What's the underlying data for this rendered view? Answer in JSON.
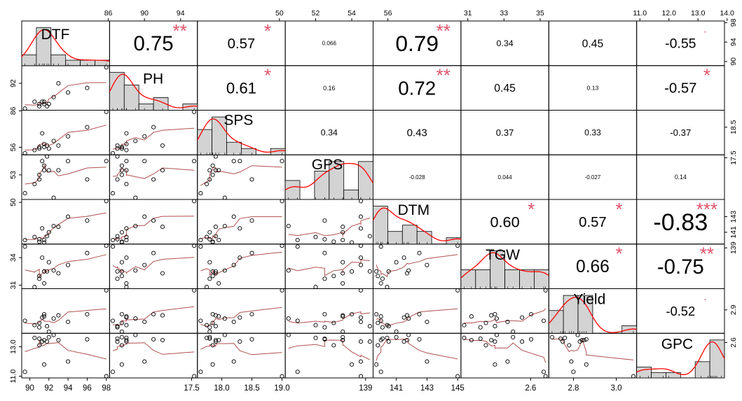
{
  "chart_data": {
    "type": "scatter",
    "variables": [
      "DTF",
      "PH",
      "SPS",
      "GPS",
      "DTM",
      "TGW",
      "Yield",
      "GPC"
    ],
    "variable_ticks": {
      "DTF": [
        "90",
        "92",
        "94",
        "96",
        "98"
      ],
      "PH": [
        "86",
        "90",
        "94"
      ],
      "SPS": [
        "17.5",
        "18.0",
        "18.5",
        "19.0"
      ],
      "GPS": [
        "50",
        "52",
        "54",
        "56"
      ],
      "DTM": [
        "139",
        "141",
        "143",
        "145"
      ],
      "TGW": [
        "31",
        "33",
        "35"
      ],
      "Yield": [
        "2.6",
        "2.8",
        "3.0"
      ],
      "GPC": [
        "11.0",
        "12.0",
        "13.0",
        "14.0"
      ]
    },
    "left_axis_ticks": {
      "PH": [
        "86",
        "92"
      ],
      "GPS": [
        "50",
        "53",
        "56"
      ],
      "TGW": [
        "31",
        "34"
      ],
      "GPC": [
        "11.0",
        "13.0"
      ]
    },
    "right_axis_ticks": {
      "DTF": [
        "90",
        "94",
        "98"
      ],
      "SPS": [
        "17.5",
        "18.5"
      ],
      "DTM": [
        "139",
        "141",
        "143"
      ],
      "Yield": [
        "2.6",
        "2.9"
      ]
    },
    "correlations": [
      {
        "row": "DTF",
        "col": "PH",
        "r": "0.75",
        "stars": "**"
      },
      {
        "row": "DTF",
        "col": "SPS",
        "r": "0.57",
        "stars": "*"
      },
      {
        "row": "DTF",
        "col": "GPS",
        "r": "0.066",
        "stars": ""
      },
      {
        "row": "DTF",
        "col": "DTM",
        "r": "0.79",
        "stars": "**"
      },
      {
        "row": "DTF",
        "col": "TGW",
        "r": "0.34",
        "stars": ""
      },
      {
        "row": "DTF",
        "col": "Yield",
        "r": "0.45",
        "stars": ""
      },
      {
        "row": "DTF",
        "col": "GPC",
        "r": "-0.55",
        "stars": "."
      },
      {
        "row": "PH",
        "col": "SPS",
        "r": "0.61",
        "stars": "*"
      },
      {
        "row": "PH",
        "col": "GPS",
        "r": "0.16",
        "stars": ""
      },
      {
        "row": "PH",
        "col": "DTM",
        "r": "0.72",
        "stars": "**"
      },
      {
        "row": "PH",
        "col": "TGW",
        "r": "0.45",
        "stars": ""
      },
      {
        "row": "PH",
        "col": "Yield",
        "r": "0.13",
        "stars": ""
      },
      {
        "row": "PH",
        "col": "GPC",
        "r": "-0.57",
        "stars": "*"
      },
      {
        "row": "SPS",
        "col": "GPS",
        "r": "0.34",
        "stars": ""
      },
      {
        "row": "SPS",
        "col": "DTM",
        "r": "0.43",
        "stars": ""
      },
      {
        "row": "SPS",
        "col": "TGW",
        "r": "0.37",
        "stars": ""
      },
      {
        "row": "SPS",
        "col": "Yield",
        "r": "0.33",
        "stars": ""
      },
      {
        "row": "SPS",
        "col": "GPC",
        "r": "-0.37",
        "stars": ""
      },
      {
        "row": "GPS",
        "col": "DTM",
        "r": "-0.028",
        "stars": ""
      },
      {
        "row": "GPS",
        "col": "TGW",
        "r": "0.044",
        "stars": ""
      },
      {
        "row": "GPS",
        "col": "Yield",
        "r": "-0.027",
        "stars": ""
      },
      {
        "row": "GPS",
        "col": "GPC",
        "r": "0.14",
        "stars": ""
      },
      {
        "row": "DTM",
        "col": "TGW",
        "r": "0.60",
        "stars": "*"
      },
      {
        "row": "DTM",
        "col": "Yield",
        "r": "0.57",
        "stars": "*"
      },
      {
        "row": "DTM",
        "col": "GPC",
        "r": "-0.83",
        "stars": "***"
      },
      {
        "row": "TGW",
        "col": "Yield",
        "r": "0.66",
        "stars": "*"
      },
      {
        "row": "TGW",
        "col": "GPC",
        "r": "-0.75",
        "stars": "**"
      },
      {
        "row": "Yield",
        "col": "GPC",
        "r": "-0.52",
        "stars": "."
      }
    ],
    "observations": {
      "DTF": [
        89.5,
        91,
        91.5,
        91,
        91.8,
        92,
        91.3,
        92.5,
        93,
        96,
        98,
        94,
        91.5,
        90.5
      ],
      "PH": [
        86.5,
        87.5,
        88,
        87,
        87,
        87.5,
        88,
        89,
        92,
        91,
        95.5,
        90,
        87.5,
        88
      ],
      "SPS": [
        17.65,
        17.85,
        17.95,
        17.8,
        17.9,
        17.8,
        18.3,
        18.05,
        17.9,
        18.5,
        19.0,
        18.2,
        17.85,
        17.75
      ],
      "GPS": [
        51,
        53,
        53.5,
        52.5,
        55,
        53.5,
        54.5,
        50.5,
        53.5,
        52.5,
        54.5,
        54.5,
        54,
        52
      ],
      "DTM": [
        140,
        139.8,
        140,
        140.1,
        140.5,
        141,
        141.5,
        141.8,
        141.7,
        142.5,
        145,
        143,
        139.7,
        140.4
      ],
      "TGW": [
        35.2,
        32,
        31.2,
        31.7,
        32.5,
        33.5,
        34,
        32.6,
        32.3,
        34.5,
        35.3,
        33.2,
        32.5,
        30.8
      ],
      "Yield": [
        2.8,
        2.78,
        2.84,
        2.74,
        2.75,
        2.7,
        2.83,
        2.82,
        2.85,
        2.86,
        3.08,
        2.79,
        2.86,
        2.76
      ],
      "GPC": [
        11.3,
        13.1,
        13.45,
        13.55,
        13.35,
        13.65,
        13.35,
        13.8,
        13.45,
        13.5,
        11.0,
        12.0,
        11.8,
        13.6
      ]
    },
    "colors": {
      "star": "#df536b",
      "density": "#ff0000",
      "smooth": "#b05050",
      "bar_fill": "#d3d3d3"
    }
  }
}
